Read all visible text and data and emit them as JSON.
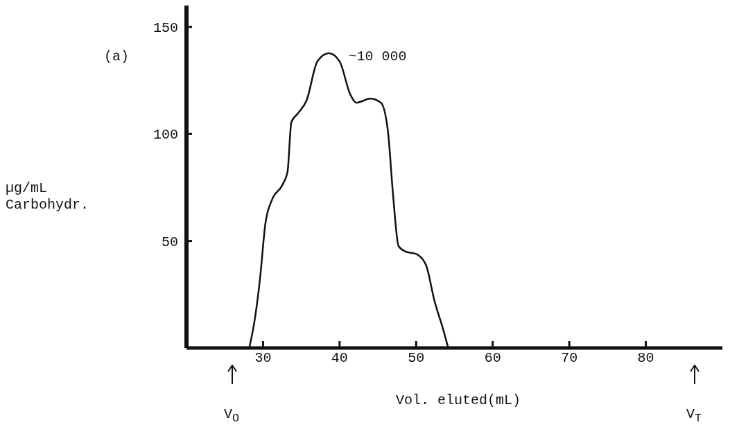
{
  "chart_data": {
    "type": "line",
    "xlabel": "Vol. eluted(mL)",
    "ylabel": "µg/mL\nCarbohydr.",
    "xlim": [
      20,
      90
    ],
    "xticks": [
      30,
      40,
      50,
      60,
      70,
      80
    ],
    "ylim": [
      0,
      160
    ],
    "yticks": [
      50,
      100,
      150
    ],
    "marker": "none",
    "line_style": "solid",
    "series": [
      {
        "color": "#111111",
        "x": [
          28.2,
          28.9,
          29.6,
          30.3,
          31.2,
          32.5,
          33.2,
          33.7,
          34.5,
          35.7,
          37.1,
          38.6,
          40.0,
          41.4,
          42.2,
          44.0,
          45.4,
          46.3,
          47.0,
          47.7,
          48.6,
          50.1,
          51.3,
          52.4,
          53.5,
          54.2
        ],
        "values": [
          0,
          12.9,
          32.2,
          57.9,
          69.5,
          76,
          82.4,
          105.5,
          109.4,
          115.8,
          133.9,
          137.7,
          133.9,
          118.4,
          114.6,
          116.5,
          114.6,
          101.7,
          70.8,
          47.6,
          45.1,
          43.8,
          38.6,
          21.9,
          9,
          0
        ]
      }
    ],
    "annotations": [
      "(a)",
      {
        "text": "~10 000",
        "x": 38.6,
        "y": 137.7
      },
      "V$_{O}$",
      "V$_{T}$"
    ]
  }
}
